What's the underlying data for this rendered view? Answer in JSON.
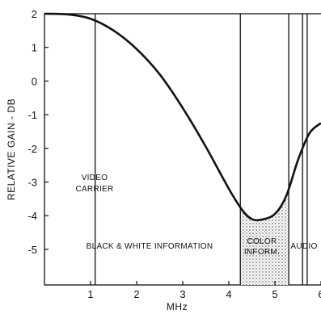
{
  "chart_data": {
    "type": "line",
    "title": "",
    "xlabel": "MHz",
    "ylabel": "RELATIVE GAIN - DB",
    "xlim": [
      0,
      6
    ],
    "ylim": [
      -6,
      2
    ],
    "x_ticks": [
      1,
      2,
      3,
      4,
      5,
      6
    ],
    "x_tick_labels": [
      "1",
      "2",
      "3",
      "4",
      "5",
      "6"
    ],
    "y_ticks": [
      2,
      1,
      0,
      -1,
      -2,
      -3,
      -4,
      -5
    ],
    "y_tick_labels": [
      "2",
      "1",
      "0",
      "-1",
      "-2",
      "-3",
      "-4",
      "-5"
    ],
    "grid": false,
    "series": [
      {
        "x": [
          0,
          0.5,
          1.0,
          1.5,
          2.0,
          2.5,
          3.0,
          3.5,
          4.0,
          4.3,
          4.5,
          4.7,
          5.0,
          5.25,
          5.5,
          5.75,
          6.0
        ],
        "y": [
          2.0,
          1.98,
          1.85,
          1.5,
          0.95,
          0.2,
          -0.8,
          -1.95,
          -3.2,
          -3.85,
          -4.1,
          -4.12,
          -3.95,
          -3.4,
          -2.35,
          -1.55,
          -1.25
        ]
      }
    ],
    "markers": [
      {
        "x": 1.1,
        "label": "VIDEO CARRIER"
      },
      {
        "x": 4.25
      },
      {
        "x": 5.3
      },
      {
        "x": 5.6
      },
      {
        "x": 5.7
      }
    ],
    "regions": [
      {
        "x_start": 0,
        "x_end": 4.25,
        "label": "BLACK & WHITE INFORMATION",
        "shaded": false
      },
      {
        "x_start": 4.25,
        "x_end": 5.3,
        "label": "COLOR INFORM.",
        "shaded": true
      },
      {
        "x_start": 5.3,
        "x_end": 6.0,
        "label": "AUDIO",
        "shaded": false
      }
    ]
  }
}
